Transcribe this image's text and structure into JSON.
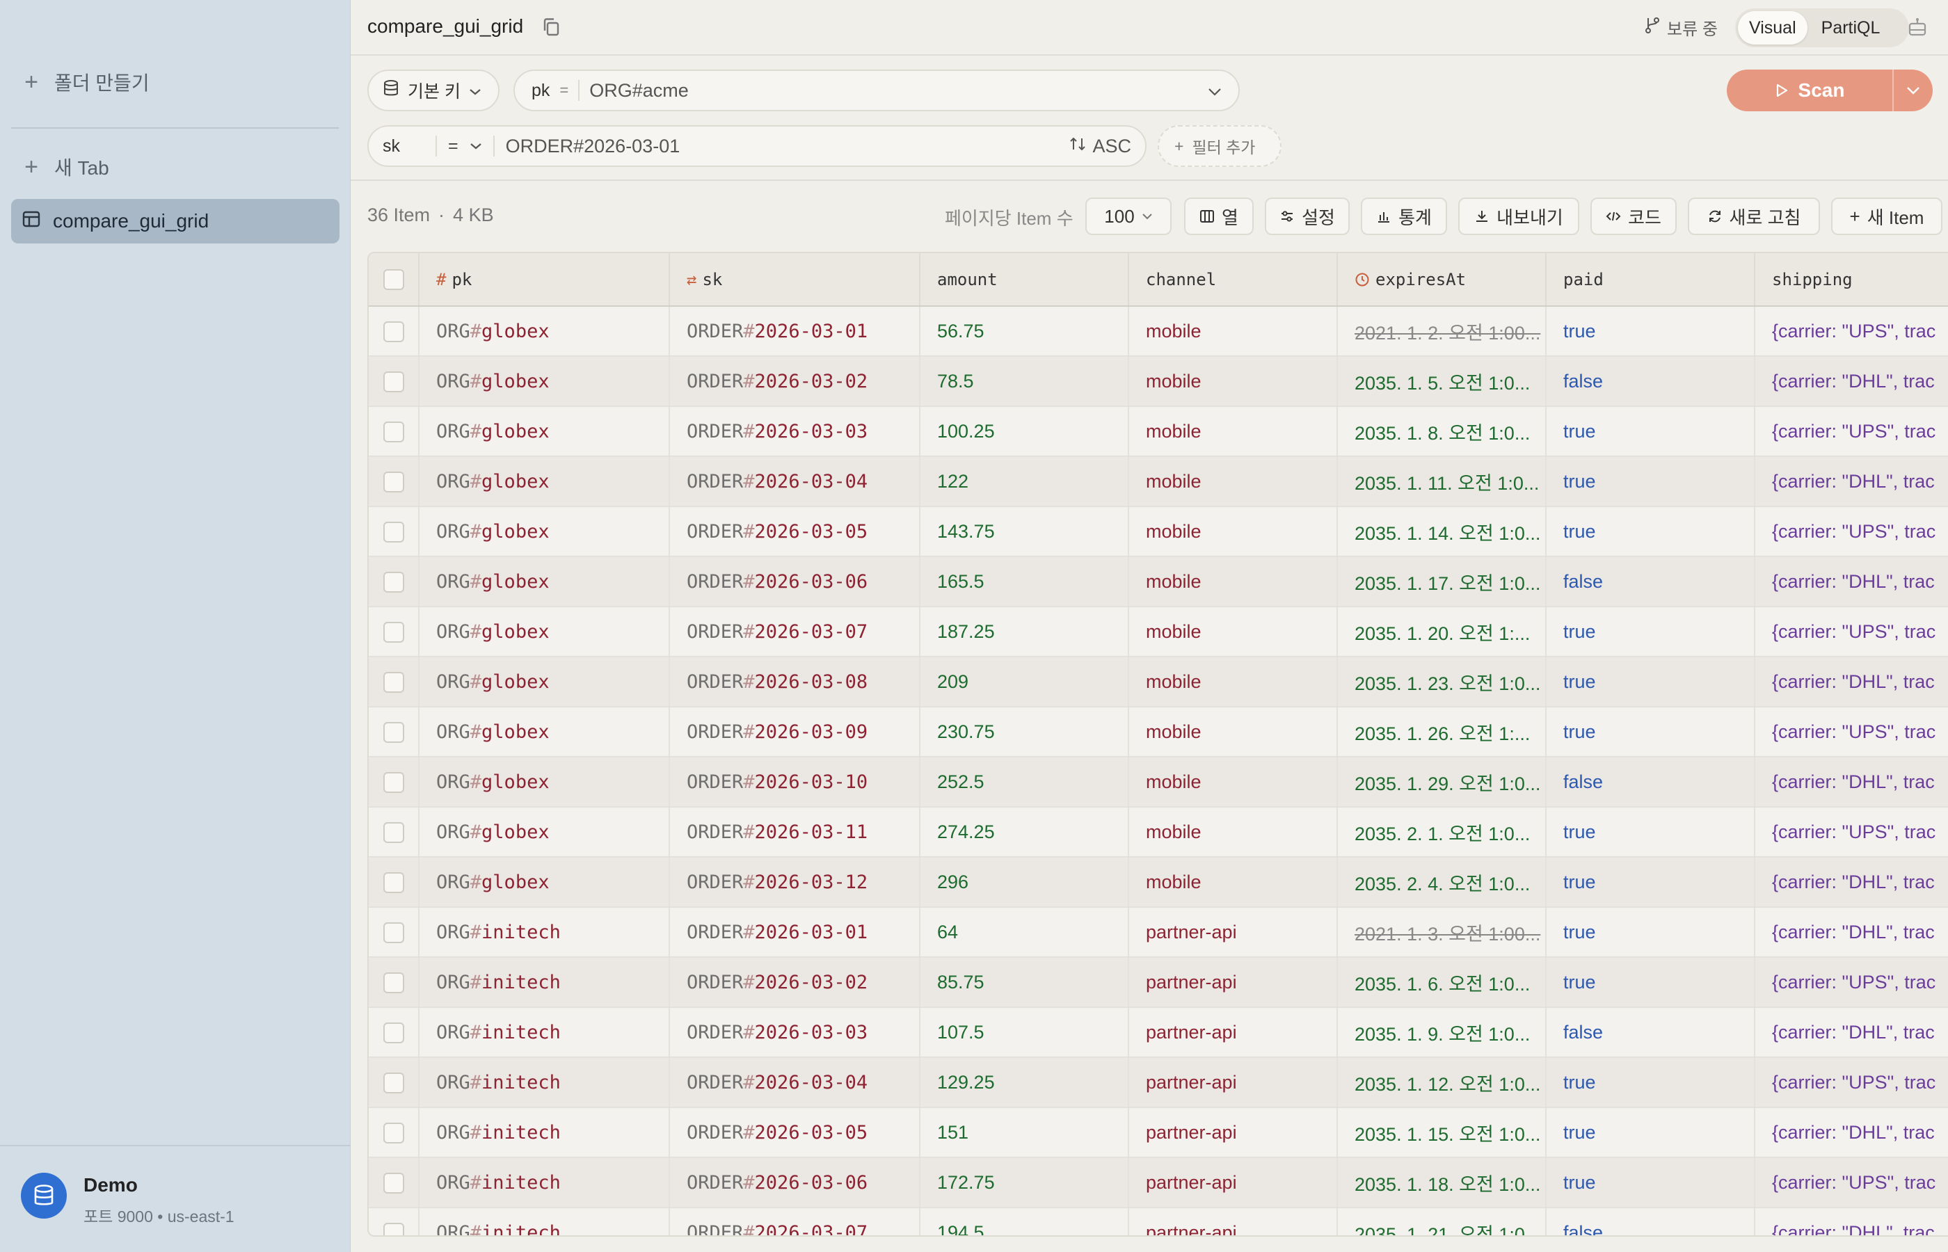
{
  "sidebar": {
    "create_folder": "폴더 만들기",
    "new_tab": "새 Tab",
    "active_table": "compare_gui_grid",
    "connection_name": "Demo",
    "connection_detail": "포트 9000 • us-east-1"
  },
  "titlebar": {
    "tab_title": "compare_gui_grid",
    "status": "보류 중",
    "modes": [
      "Visual",
      "PartiQL"
    ],
    "active_mode": "Visual"
  },
  "query": {
    "key_select": "기본 키",
    "pk_label": "pk",
    "pk_operator": "=",
    "pk_value": "ORG#acme",
    "sk_label": "sk",
    "sk_operator": "=",
    "sk_value": "ORDER#2026-03-01",
    "sort_order": "ASC",
    "add_filter": "필터 추가",
    "scan_label": "Scan"
  },
  "toolbar": {
    "item_count": "36 Item",
    "size": "4 KB",
    "per_page_label": "페이지당 Item 수",
    "per_page_value": "100",
    "columns": "열",
    "settings": "설정",
    "stats": "통계",
    "export": "내보내기",
    "code": "코드",
    "refresh": "새로 고침",
    "new_item": "새 Item"
  },
  "table": {
    "headers": [
      "pk",
      "sk",
      "amount",
      "channel",
      "expiresAt",
      "paid",
      "shipping"
    ],
    "rows": [
      {
        "pk_prefix": "ORG",
        "pk_val": "globex",
        "sk_prefix": "ORDER",
        "sk_val": "2026-03-01",
        "amount": "56.75",
        "channel": "mobile",
        "expiresAt": "2021. 1. 2. 오전 1:00...",
        "expired": true,
        "paid": "true",
        "shipping": "{carrier: \"UPS\", trac"
      },
      {
        "pk_prefix": "ORG",
        "pk_val": "globex",
        "sk_prefix": "ORDER",
        "sk_val": "2026-03-02",
        "amount": "78.5",
        "channel": "mobile",
        "expiresAt": "2035. 1. 5. 오전 1:0...",
        "expired": false,
        "paid": "false",
        "shipping": "{carrier: \"DHL\", trac"
      },
      {
        "pk_prefix": "ORG",
        "pk_val": "globex",
        "sk_prefix": "ORDER",
        "sk_val": "2026-03-03",
        "amount": "100.25",
        "channel": "mobile",
        "expiresAt": "2035. 1. 8. 오전 1:0...",
        "expired": false,
        "paid": "true",
        "shipping": "{carrier: \"UPS\", trac"
      },
      {
        "pk_prefix": "ORG",
        "pk_val": "globex",
        "sk_prefix": "ORDER",
        "sk_val": "2026-03-04",
        "amount": "122",
        "channel": "mobile",
        "expiresAt": "2035. 1. 11. 오전 1:0...",
        "expired": false,
        "paid": "true",
        "shipping": "{carrier: \"DHL\", trac"
      },
      {
        "pk_prefix": "ORG",
        "pk_val": "globex",
        "sk_prefix": "ORDER",
        "sk_val": "2026-03-05",
        "amount": "143.75",
        "channel": "mobile",
        "expiresAt": "2035. 1. 14. 오전 1:0...",
        "expired": false,
        "paid": "true",
        "shipping": "{carrier: \"UPS\", trac"
      },
      {
        "pk_prefix": "ORG",
        "pk_val": "globex",
        "sk_prefix": "ORDER",
        "sk_val": "2026-03-06",
        "amount": "165.5",
        "channel": "mobile",
        "expiresAt": "2035. 1. 17. 오전 1:0...",
        "expired": false,
        "paid": "false",
        "shipping": "{carrier: \"DHL\", trac"
      },
      {
        "pk_prefix": "ORG",
        "pk_val": "globex",
        "sk_prefix": "ORDER",
        "sk_val": "2026-03-07",
        "amount": "187.25",
        "channel": "mobile",
        "expiresAt": "2035. 1. 20. 오전 1:...",
        "expired": false,
        "paid": "true",
        "shipping": "{carrier: \"UPS\", trac"
      },
      {
        "pk_prefix": "ORG",
        "pk_val": "globex",
        "sk_prefix": "ORDER",
        "sk_val": "2026-03-08",
        "amount": "209",
        "channel": "mobile",
        "expiresAt": "2035. 1. 23. 오전 1:0...",
        "expired": false,
        "paid": "true",
        "shipping": "{carrier: \"DHL\", trac"
      },
      {
        "pk_prefix": "ORG",
        "pk_val": "globex",
        "sk_prefix": "ORDER",
        "sk_val": "2026-03-09",
        "amount": "230.75",
        "channel": "mobile",
        "expiresAt": "2035. 1. 26. 오전 1:...",
        "expired": false,
        "paid": "true",
        "shipping": "{carrier: \"UPS\", trac"
      },
      {
        "pk_prefix": "ORG",
        "pk_val": "globex",
        "sk_prefix": "ORDER",
        "sk_val": "2026-03-10",
        "amount": "252.5",
        "channel": "mobile",
        "expiresAt": "2035. 1. 29. 오전 1:0...",
        "expired": false,
        "paid": "false",
        "shipping": "{carrier: \"DHL\", trac"
      },
      {
        "pk_prefix": "ORG",
        "pk_val": "globex",
        "sk_prefix": "ORDER",
        "sk_val": "2026-03-11",
        "amount": "274.25",
        "channel": "mobile",
        "expiresAt": "2035. 2. 1. 오전 1:0...",
        "expired": false,
        "paid": "true",
        "shipping": "{carrier: \"UPS\", trac"
      },
      {
        "pk_prefix": "ORG",
        "pk_val": "globex",
        "sk_prefix": "ORDER",
        "sk_val": "2026-03-12",
        "amount": "296",
        "channel": "mobile",
        "expiresAt": "2035. 2. 4. 오전 1:0...",
        "expired": false,
        "paid": "true",
        "shipping": "{carrier: \"DHL\", trac"
      },
      {
        "pk_prefix": "ORG",
        "pk_val": "initech",
        "sk_prefix": "ORDER",
        "sk_val": "2026-03-01",
        "amount": "64",
        "channel": "partner-api",
        "expiresAt": "2021. 1. 3. 오전 1:00...",
        "expired": true,
        "paid": "true",
        "shipping": "{carrier: \"DHL\", trac"
      },
      {
        "pk_prefix": "ORG",
        "pk_val": "initech",
        "sk_prefix": "ORDER",
        "sk_val": "2026-03-02",
        "amount": "85.75",
        "channel": "partner-api",
        "expiresAt": "2035. 1. 6. 오전 1:0...",
        "expired": false,
        "paid": "true",
        "shipping": "{carrier: \"UPS\", trac"
      },
      {
        "pk_prefix": "ORG",
        "pk_val": "initech",
        "sk_prefix": "ORDER",
        "sk_val": "2026-03-03",
        "amount": "107.5",
        "channel": "partner-api",
        "expiresAt": "2035. 1. 9. 오전 1:0...",
        "expired": false,
        "paid": "false",
        "shipping": "{carrier: \"DHL\", trac"
      },
      {
        "pk_prefix": "ORG",
        "pk_val": "initech",
        "sk_prefix": "ORDER",
        "sk_val": "2026-03-04",
        "amount": "129.25",
        "channel": "partner-api",
        "expiresAt": "2035. 1. 12. 오전 1:0...",
        "expired": false,
        "paid": "true",
        "shipping": "{carrier: \"UPS\", trac"
      },
      {
        "pk_prefix": "ORG",
        "pk_val": "initech",
        "sk_prefix": "ORDER",
        "sk_val": "2026-03-05",
        "amount": "151",
        "channel": "partner-api",
        "expiresAt": "2035. 1. 15. 오전 1:0...",
        "expired": false,
        "paid": "true",
        "shipping": "{carrier: \"DHL\", trac"
      },
      {
        "pk_prefix": "ORG",
        "pk_val": "initech",
        "sk_prefix": "ORDER",
        "sk_val": "2026-03-06",
        "amount": "172.75",
        "channel": "partner-api",
        "expiresAt": "2035. 1. 18. 오전 1:0...",
        "expired": false,
        "paid": "true",
        "shipping": "{carrier: \"UPS\", trac"
      },
      {
        "pk_prefix": "ORG",
        "pk_val": "initech",
        "sk_prefix": "ORDER",
        "sk_val": "2026-03-07",
        "amount": "194.5",
        "channel": "partner-api",
        "expiresAt": "2035. 1. 21. 오전 1:0...",
        "expired": false,
        "paid": "false",
        "shipping": "{carrier: \"DHL\", trac"
      }
    ]
  },
  "colors": {
    "key_value": "#8d2332",
    "number": "#1d6b2f",
    "boolean": "#2c58b0",
    "map": "#6a3c9c",
    "scan_button": "#e79880",
    "connection_icon": "#2f6fd1"
  }
}
